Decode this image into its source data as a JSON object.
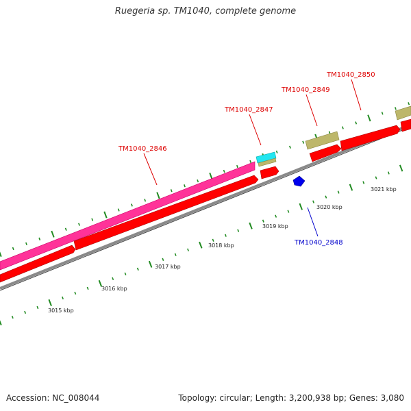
{
  "title": "Ruegeria sp. TM1040, complete genome",
  "footer": {
    "accession": "Accession: NC_008044",
    "summary": "Topology: circular; Length: 3,200,938 bp; Genes: 3,080"
  },
  "colors": {
    "backbone": "#8a8a8a",
    "cds": "#ff0000",
    "pink": "#ff3399",
    "cyan": "#22e6f0",
    "khaki": "#bdb76b",
    "blue": "#0000ee",
    "label_red": "#dd0000",
    "label_blue": "#0000cc",
    "tick": "#228b22"
  },
  "ruler_labels": [
    "3015 kbp",
    "3016 kbp",
    "3017 kbp",
    "3018 kbp",
    "3019 kbp",
    "3020 kbp",
    "3021 kbp"
  ],
  "gene_labels": [
    {
      "text": "TM1040_2846",
      "color": "red"
    },
    {
      "text": "TM1040_2847",
      "color": "red"
    },
    {
      "text": "TM1040_2849",
      "color": "red"
    },
    {
      "text": "TM1040_2850",
      "color": "red"
    },
    {
      "text": "TM1040_2848",
      "color": "blue"
    }
  ]
}
